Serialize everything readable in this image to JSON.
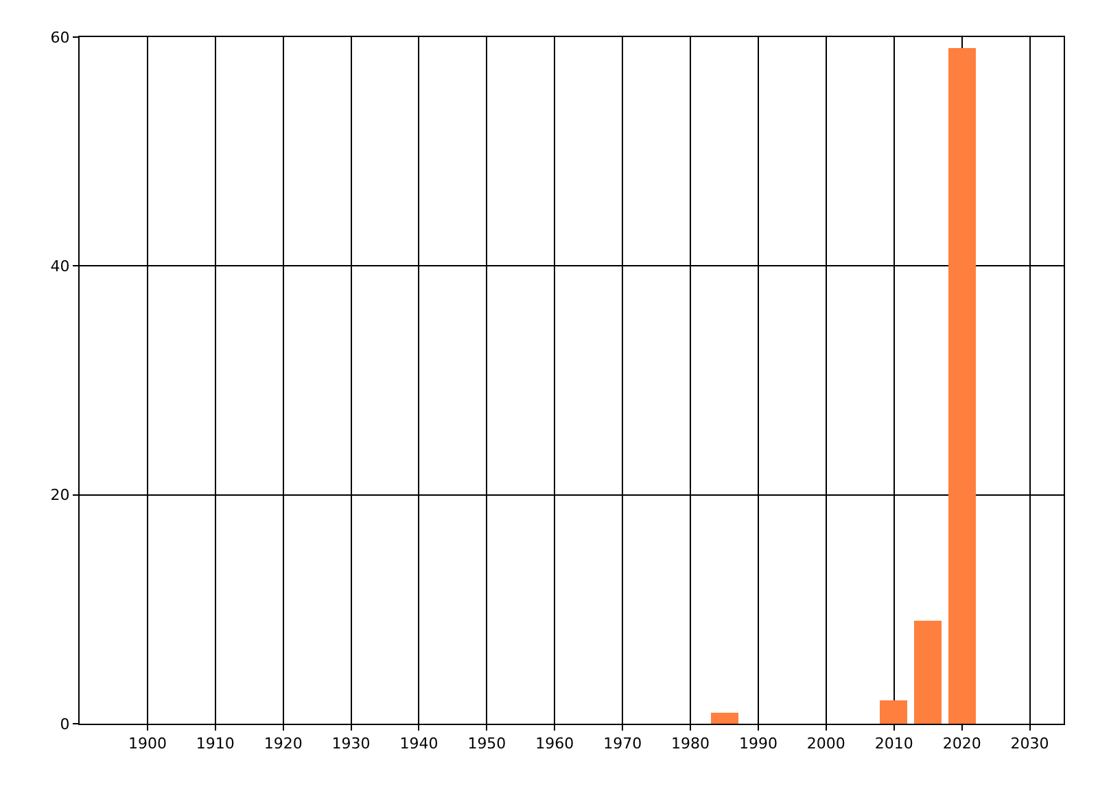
{
  "chart_data": {
    "type": "bar",
    "x": [
      1985,
      2010,
      2015,
      2020
    ],
    "values": [
      1,
      2,
      9,
      59
    ],
    "color": "#ff7f3f",
    "xlim": [
      1890,
      2035
    ],
    "xticks": [
      1900,
      1910,
      1920,
      1930,
      1940,
      1950,
      1960,
      1970,
      1980,
      1990,
      2000,
      2010,
      2020,
      2030
    ],
    "ylim": [
      0,
      60
    ],
    "yticks": [
      0,
      20,
      40,
      60
    ],
    "grid": true
  }
}
